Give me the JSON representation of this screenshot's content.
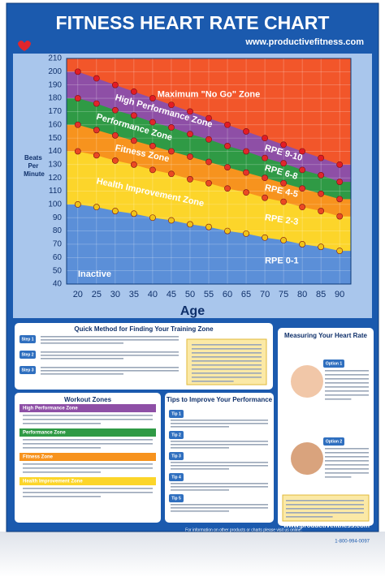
{
  "header": {
    "title": "FITNESS HEART RATE CHART",
    "url": "www.productivefitness.com"
  },
  "chart_data": {
    "type": "zone",
    "x_label": "Age",
    "y_label": "Beats Per Minute",
    "x": [
      20,
      25,
      30,
      35,
      40,
      45,
      50,
      55,
      60,
      65,
      70,
      75,
      80,
      85,
      90
    ],
    "xlim": [
      17,
      93
    ],
    "xticks": [
      20,
      25,
      30,
      35,
      40,
      45,
      50,
      55,
      60,
      65,
      70,
      75,
      80,
      85,
      90
    ],
    "ylim": [
      40,
      210
    ],
    "yticks": [
      40,
      50,
      60,
      70,
      80,
      90,
      100,
      110,
      120,
      130,
      140,
      150,
      160,
      170,
      180,
      190,
      200,
      210
    ],
    "series": [
      {
        "name": "Maximum \"No Go\" Zone",
        "color": "#f2562a",
        "marker_color": "#e31c24",
        "values": [
          200,
          195,
          190,
          185,
          180,
          175,
          170,
          165,
          160,
          155,
          150,
          145,
          140,
          135,
          130
        ]
      },
      {
        "name": "High Performance Zone",
        "color": "#8e4fa6",
        "marker_color": "#e0262c",
        "values": [
          180,
          176,
          171,
          167,
          162,
          158,
          153,
          149,
          144,
          140,
          135,
          131,
          126,
          122,
          117
        ]
      },
      {
        "name": "Performance Zone",
        "color": "#2f9a45",
        "marker_color": "#e3332a",
        "values": [
          160,
          156,
          152,
          148,
          144,
          140,
          136,
          132,
          128,
          124,
          120,
          116,
          112,
          108,
          104
        ]
      },
      {
        "name": "Fitness Zone",
        "color": "#f7931e",
        "marker_color": "#ea4a23",
        "values": [
          140,
          137,
          133,
          130,
          126,
          123,
          119,
          116,
          112,
          109,
          105,
          102,
          98,
          95,
          91
        ]
      },
      {
        "name": "Health Improvement Zone",
        "color": "#fcd52a",
        "marker_color": "#f0c419",
        "values": [
          100,
          98,
          95,
          93,
          90,
          88,
          85,
          83,
          80,
          78,
          75,
          73,
          70,
          68,
          65
        ]
      }
    ],
    "inactive": {
      "name": "Inactive",
      "color": "#5b8fd8"
    },
    "annotations": [
      "RPE 9-10",
      "RPE 6-8",
      "RPE 4-5",
      "RPE 2-3",
      "RPE 0-1"
    ]
  },
  "panels": {
    "quick_method": {
      "title": "Quick Method for Finding Your Training Zone",
      "steps": [
        "Step 1",
        "Step 2",
        "Step 3"
      ]
    },
    "measuring": {
      "title": "Measuring Your Heart Rate",
      "options": [
        "Option 1",
        "Option 2"
      ]
    },
    "workout_zones": {
      "title": "Workout Zones"
    },
    "tips": {
      "title": "Tips to Improve Your Performance",
      "items": [
        "Tip 1",
        "Tip 2",
        "Tip 3",
        "Tip 4",
        "Tip 5"
      ]
    }
  },
  "footer": {
    "info": "For information on other products or charts please visit us online:",
    "url": "www.productivefitness.com",
    "phone": "1-800-994-0097"
  }
}
